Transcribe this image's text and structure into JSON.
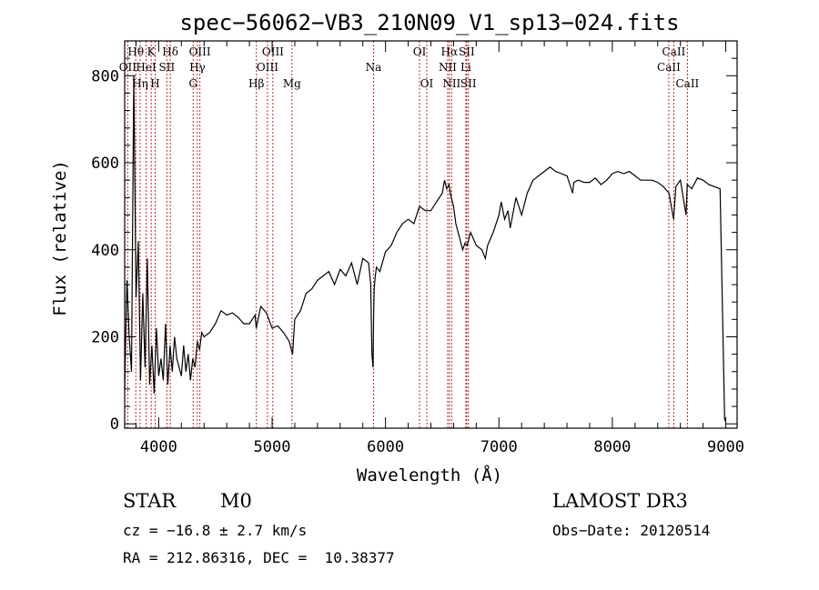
{
  "chart_data": {
    "type": "line",
    "title": "spec−56062−VB3_210N09_V1_sp13−024.fits",
    "xlabel": "Wavelength (Å)",
    "ylabel": "Flux (relative)",
    "xlim": [
      3700,
      9100
    ],
    "ylim": [
      -10,
      880
    ],
    "x_ticks": [
      4000,
      5000,
      6000,
      7000,
      8000,
      9000
    ],
    "y_ticks": [
      0,
      200,
      400,
      600,
      800
    ],
    "grid": false,
    "series": [
      {
        "x": [
          3700,
          3720,
          3740,
          3760,
          3780,
          3800,
          3820,
          3840,
          3860,
          3880,
          3900,
          3920,
          3940,
          3960,
          3980,
          4000,
          4020,
          4040,
          4060,
          4080,
          4100,
          4120,
          4140,
          4160,
          4180,
          4200,
          4220,
          4240,
          4260,
          4280,
          4300,
          4320,
          4340,
          4360,
          4380,
          4400,
          4450,
          4500,
          4550,
          4600,
          4650,
          4700,
          4750,
          4800,
          4850,
          4860,
          4900,
          4950,
          5000,
          5050,
          5100,
          5150,
          5180,
          5200,
          5250,
          5300,
          5350,
          5400,
          5450,
          5500,
          5550,
          5600,
          5650,
          5700,
          5750,
          5800,
          5850,
          5870,
          5880,
          5890,
          5895,
          5900,
          5910,
          5920,
          5950,
          6000,
          6050,
          6100,
          6150,
          6200,
          6250,
          6300,
          6350,
          6400,
          6450,
          6500,
          6520,
          6540,
          6560,
          6580,
          6600,
          6620,
          6650,
          6680,
          6700,
          6720,
          6750,
          6800,
          6850,
          6880,
          6900,
          6950,
          7000,
          7020,
          7050,
          7080,
          7100,
          7150,
          7200,
          7250,
          7300,
          7350,
          7400,
          7450,
          7500,
          7550,
          7600,
          7650,
          7660,
          7700,
          7750,
          7800,
          7850,
          7900,
          7950,
          8000,
          8050,
          8100,
          8150,
          8200,
          8250,
          8300,
          8350,
          8400,
          8450,
          8500,
          8540,
          8560,
          8600,
          8650,
          8660,
          8700,
          8750,
          8800,
          8850,
          8900,
          8950,
          8990,
          9000
        ],
        "y": [
          80,
          330,
          200,
          120,
          800,
          290,
          420,
          100,
          300,
          130,
          380,
          90,
          180,
          70,
          220,
          110,
          150,
          100,
          230,
          90,
          180,
          120,
          200,
          150,
          130,
          110,
          180,
          120,
          160,
          100,
          150,
          130,
          190,
          170,
          210,
          200,
          210,
          230,
          260,
          250,
          255,
          245,
          230,
          230,
          250,
          220,
          270,
          255,
          220,
          225,
          210,
          190,
          160,
          240,
          260,
          300,
          310,
          330,
          340,
          350,
          320,
          355,
          340,
          370,
          320,
          380,
          370,
          320,
          160,
          130,
          250,
          310,
          340,
          360,
          350,
          395,
          410,
          440,
          460,
          470,
          460,
          500,
          490,
          490,
          510,
          530,
          560,
          540,
          550,
          520,
          500,
          460,
          430,
          400,
          415,
          410,
          440,
          410,
          400,
          380,
          410,
          440,
          480,
          510,
          470,
          490,
          450,
          520,
          480,
          530,
          560,
          570,
          580,
          590,
          580,
          575,
          570,
          530,
          555,
          560,
          555,
          555,
          565,
          550,
          560,
          575,
          580,
          575,
          580,
          570,
          560,
          560,
          560,
          555,
          545,
          530,
          470,
          545,
          560,
          480,
          550,
          540,
          565,
          560,
          550,
          545,
          540,
          10,
          5
        ]
      }
    ],
    "spectral_lines": [
      {
        "label": "OII",
        "wl": 3727,
        "row": 1
      },
      {
        "label": "Hθ",
        "wl": 3798,
        "row": 0
      },
      {
        "label": "Hη",
        "wl": 3836,
        "row": 2
      },
      {
        "label": "HeI",
        "wl": 3889,
        "row": 1
      },
      {
        "label": "K",
        "wl": 3934,
        "row": 0
      },
      {
        "label": "H",
        "wl": 3969,
        "row": 2
      },
      {
        "label": "SII",
        "wl": 4072,
        "row": 1
      },
      {
        "label": "Hδ",
        "wl": 4102,
        "row": 0
      },
      {
        "label": "G",
        "wl": 4304,
        "row": 2
      },
      {
        "label": "Hγ",
        "wl": 4341,
        "row": 1
      },
      {
        "label": "OIII",
        "wl": 4363,
        "row": 0
      },
      {
        "label": "Hβ",
        "wl": 4861,
        "row": 2
      },
      {
        "label": "OIII",
        "wl": 4959,
        "row": 1
      },
      {
        "label": "OIII",
        "wl": 5007,
        "row": 0
      },
      {
        "label": "Mg",
        "wl": 5175,
        "row": 2
      },
      {
        "label": "Na",
        "wl": 5894,
        "row": 1
      },
      {
        "label": "OI",
        "wl": 6300,
        "row": 0
      },
      {
        "label": "OI",
        "wl": 6364,
        "row": 2
      },
      {
        "label": "NII",
        "wl": 6548,
        "row": 1
      },
      {
        "label": "Hα",
        "wl": 6563,
        "row": 0
      },
      {
        "label": "NII",
        "wl": 6583,
        "row": 2
      },
      {
        "label": "SII",
        "wl": 6716,
        "row": 0
      },
      {
        "label": "Li",
        "wl": 6708,
        "row": 1
      },
      {
        "label": "SII",
        "wl": 6731,
        "row": 2
      },
      {
        "label": "CaII",
        "wl": 8498,
        "row": 1
      },
      {
        "label": "CaII",
        "wl": 8542,
        "row": 0
      },
      {
        "label": "CaII",
        "wl": 8662,
        "row": 2
      }
    ]
  },
  "colors": {
    "line_marker": "#c8261e",
    "spectrum": "#000000",
    "axes": "#000000"
  },
  "info": {
    "object_class": "STAR",
    "subclass": "M0",
    "survey": "LAMOST DR3",
    "redshift": "cz = −16.8 ± 2.7 km/s",
    "obs_date": "Obs−Date: 20120514",
    "coords": "RA = 212.86316, DEC =  10.38377"
  }
}
